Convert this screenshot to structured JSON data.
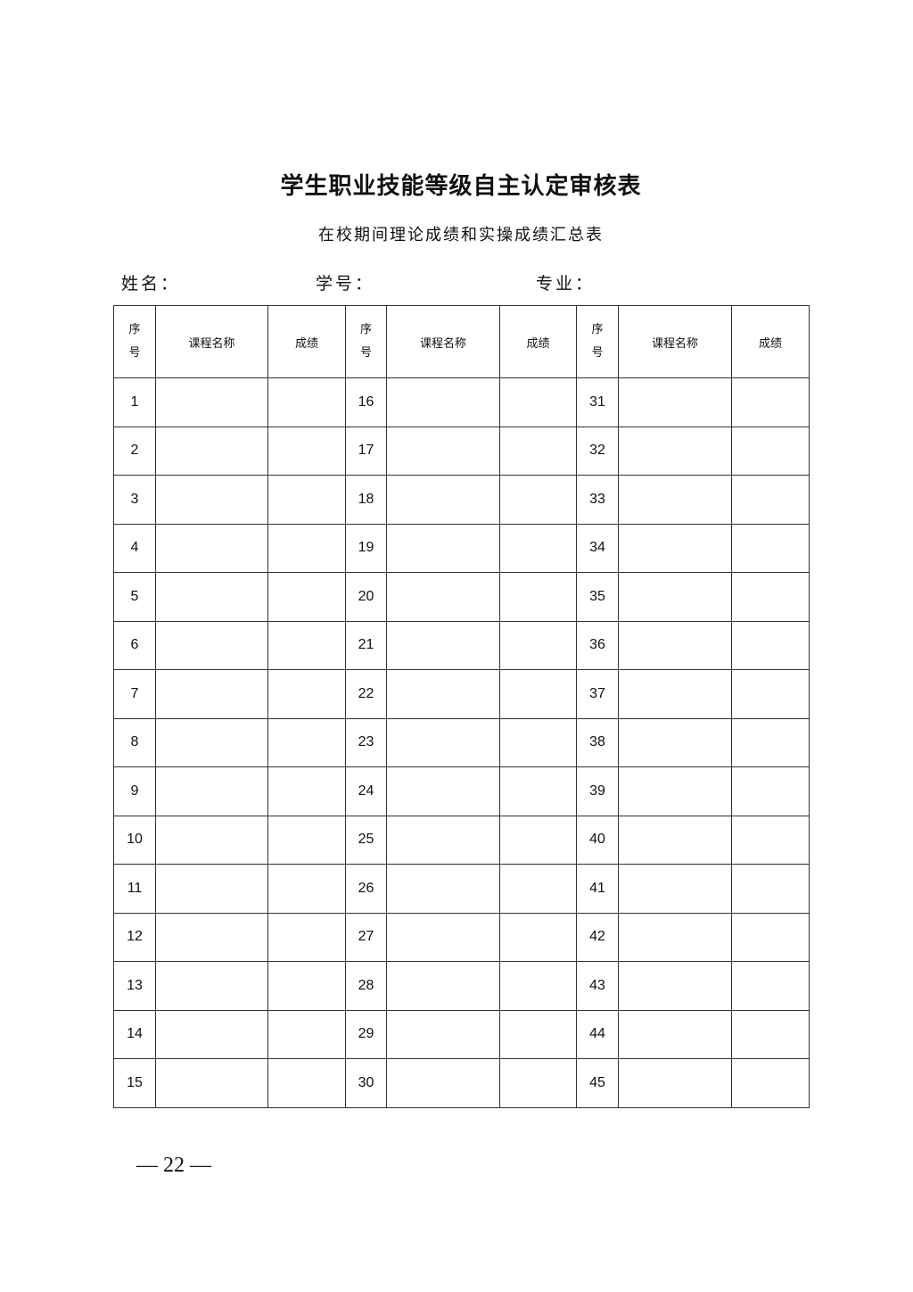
{
  "title": "学生职业技能等级自主认定审核表",
  "subtitle": "在校期间理论成绩和实操成绩汇总表",
  "fields": {
    "name_label": "姓名：",
    "id_label": "学号：",
    "major_label": "专业："
  },
  "table": {
    "headers": {
      "seq": "序号",
      "course": "课程名称",
      "score": "成绩"
    },
    "rows": [
      [
        1,
        16,
        31
      ],
      [
        2,
        17,
        32
      ],
      [
        3,
        18,
        33
      ],
      [
        4,
        19,
        34
      ],
      [
        5,
        20,
        35
      ],
      [
        6,
        21,
        36
      ],
      [
        7,
        22,
        37
      ],
      [
        8,
        23,
        38
      ],
      [
        9,
        24,
        39
      ],
      [
        10,
        25,
        40
      ],
      [
        11,
        26,
        41
      ],
      [
        12,
        27,
        42
      ],
      [
        13,
        28,
        43
      ],
      [
        14,
        29,
        44
      ],
      [
        15,
        30,
        45
      ]
    ]
  },
  "page_number": "— 22 —"
}
